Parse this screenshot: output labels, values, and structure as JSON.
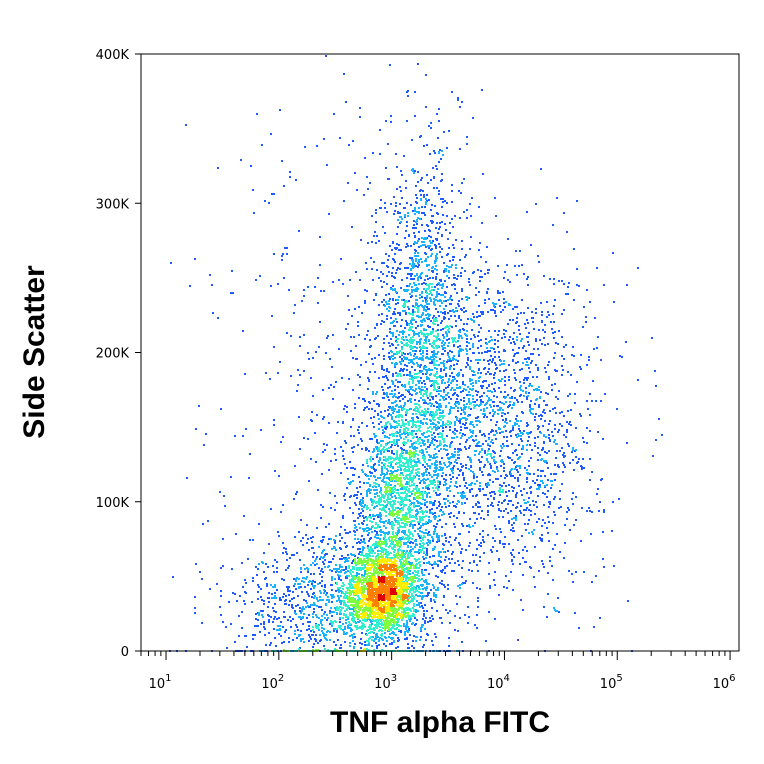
{
  "chart_data": {
    "type": "scatter",
    "subtype": "flow-cytometry-density-dot-plot",
    "title": "",
    "xlabel": "TNF alpha FITC",
    "ylabel": "Side Scatter",
    "x_scale": "log",
    "xlim": [
      6,
      1200000
    ],
    "ylim": [
      0,
      400000
    ],
    "x_ticks": [
      {
        "value": 10,
        "base": "10",
        "exp": "1"
      },
      {
        "value": 100,
        "base": "10",
        "exp": "2"
      },
      {
        "value": 1000,
        "base": "10",
        "exp": "3"
      },
      {
        "value": 10000,
        "base": "10",
        "exp": "4"
      },
      {
        "value": 100000,
        "base": "10",
        "exp": "5"
      },
      {
        "value": 1000000,
        "base": "10",
        "exp": "6"
      }
    ],
    "y_ticks": [
      {
        "value": 0,
        "label": "0"
      },
      {
        "value": 100000,
        "label": "100K"
      },
      {
        "value": 200000,
        "label": "200K"
      },
      {
        "value": 300000,
        "label": "300K"
      },
      {
        "value": 400000,
        "label": "400K"
      }
    ],
    "density_colormap": [
      "#1010d0",
      "#1e5cff",
      "#18b4ff",
      "#30f0d0",
      "#80ff40",
      "#ffee00",
      "#ff8000",
      "#e00000"
    ],
    "populations": [
      {
        "center_x": 800,
        "center_y": 40000,
        "spread_log10_x": 0.16,
        "spread_y": 14000,
        "weight": 0.2
      },
      {
        "center_x": 1100,
        "center_y": 90000,
        "spread_log10_x": 0.22,
        "spread_y": 40000,
        "weight": 0.22
      },
      {
        "center_x": 1800,
        "center_y": 210000,
        "spread_log10_x": 0.2,
        "spread_y": 60000,
        "weight": 0.18
      },
      {
        "center_x": 8000,
        "center_y": 150000,
        "spread_log10_x": 0.45,
        "spread_y": 55000,
        "weight": 0.22
      },
      {
        "center_x": 300,
        "center_y": 25000,
        "spread_log10_x": 0.45,
        "spread_y": 25000,
        "weight": 0.12
      },
      {
        "center_x": 600,
        "center_y": 180000,
        "spread_log10_x": 0.7,
        "spread_y": 100000,
        "weight": 0.06
      }
    ]
  }
}
